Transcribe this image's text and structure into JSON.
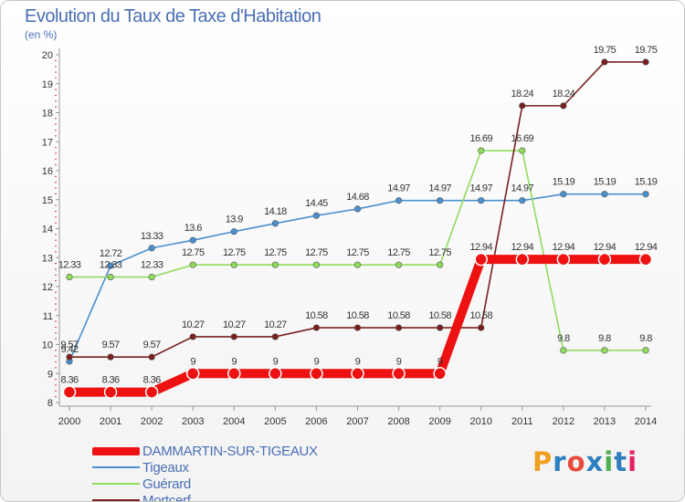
{
  "title": "Evolution du Taux de Taxe d'Habitation",
  "subtitle": "(en %)",
  "logo": {
    "text": "Proxiti",
    "colors": [
      "#f0a020",
      "#2d7fc0",
      "#e74c3c",
      "#2d7fc0",
      "#4caf50",
      "#2d7fc0",
      "#e91e63"
    ]
  },
  "chart_data": {
    "type": "line",
    "x": [
      2000,
      2001,
      2002,
      2003,
      2004,
      2005,
      2006,
      2007,
      2008,
      2009,
      2010,
      2011,
      2012,
      2013,
      2014
    ],
    "ylim": [
      8,
      20
    ],
    "yticks": [
      8,
      9,
      10,
      11,
      12,
      13,
      14,
      15,
      16,
      17,
      18,
      19,
      20
    ],
    "grid": false,
    "legend_position": "bottom-left",
    "series": [
      {
        "name": "DAMMARTIN-SUR-TIGEAUX",
        "color": "#ee1111",
        "values": [
          8.36,
          8.36,
          8.36,
          9,
          9,
          9,
          9,
          9,
          9,
          9,
          12.94,
          12.94,
          12.94,
          12.94,
          12.94
        ],
        "labels": [
          "8.36",
          "8.36",
          "8.36",
          "9",
          "9",
          "9",
          "9",
          "9",
          "9",
          "9",
          "12.94",
          "12.94",
          "12.94",
          "12.94",
          "12.94"
        ]
      },
      {
        "name": "Tigeaux",
        "color": "#4a90d0",
        "values": [
          9.42,
          12.72,
          13.33,
          13.6,
          13.9,
          14.18,
          14.45,
          14.68,
          14.97,
          14.97,
          14.97,
          14.97,
          15.19,
          15.19,
          15.19
        ],
        "labels": [
          "9.42",
          "12.72",
          "13.33",
          "13.6",
          "13.9",
          "14.18",
          "14.45",
          "14.68",
          "14.97",
          "14.97",
          "14.97",
          "14.97",
          "15.19",
          "15.19",
          "15.19"
        ]
      },
      {
        "name": "Guérard",
        "color": "#8fdc5c",
        "values": [
          12.33,
          12.33,
          12.33,
          12.75,
          12.75,
          12.75,
          12.75,
          12.75,
          12.75,
          12.75,
          16.69,
          16.69,
          9.8,
          9.8,
          9.8
        ],
        "labels": [
          "12.33",
          "12.33",
          "12.33",
          "12.75",
          "12.75",
          "12.75",
          "12.75",
          "12.75",
          "12.75",
          "12.75",
          "16.69",
          "16.69",
          "9.8",
          "9.8",
          "9.8"
        ]
      },
      {
        "name": "Mortcerf",
        "color": "#7a1f1f",
        "values": [
          9.57,
          9.57,
          9.57,
          10.27,
          10.27,
          10.27,
          10.58,
          10.58,
          10.58,
          10.58,
          10.58,
          18.24,
          18.24,
          19.75,
          19.75
        ],
        "labels": [
          "9.57",
          "9.57",
          "9.57",
          "10.27",
          "10.27",
          "10.27",
          "10.58",
          "10.58",
          "10.58",
          "10.58",
          "10.58",
          "18.24",
          "18.24",
          "19.75",
          "19.75"
        ]
      }
    ]
  }
}
